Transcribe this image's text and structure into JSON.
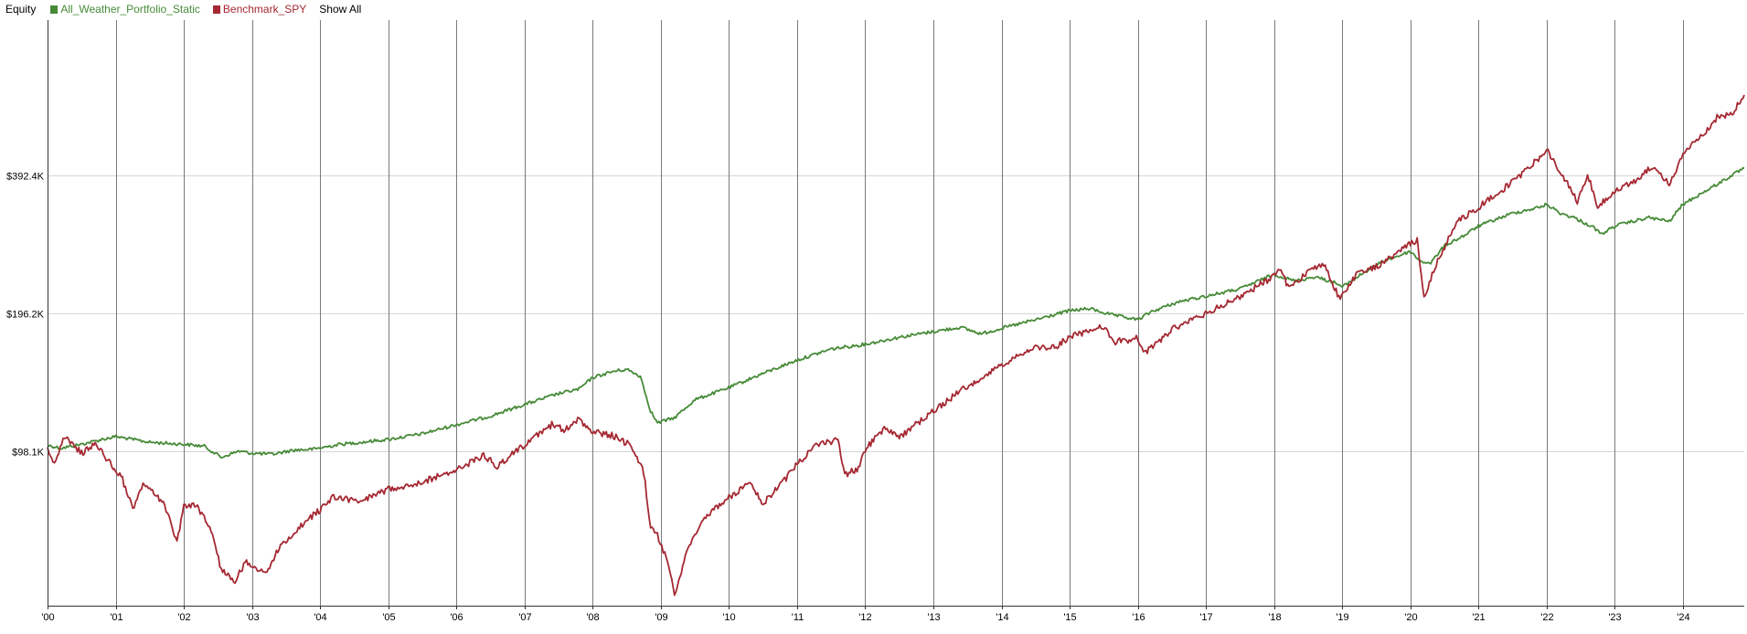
{
  "legend": {
    "title": "Equity",
    "show_all_label": "Show All"
  },
  "chart_data": {
    "type": "line",
    "title": "",
    "xlabel": "",
    "ylabel": "",
    "x_tick_labels": [
      "'00",
      "'01",
      "'02",
      "'03",
      "'04",
      "'05",
      "'06",
      "'07",
      "'08",
      "'09",
      "'10",
      "'11",
      "'12",
      "'13",
      "'14",
      "'15",
      "'16",
      "'17",
      "'18",
      "'19",
      "'20",
      "'21",
      "'22",
      "'23",
      "'24"
    ],
    "y_tick_labels": [
      "$98.1K",
      "$196.2K",
      "$392.4K"
    ],
    "y_ticks": [
      98100,
      196200,
      392400
    ],
    "y_scale": "log",
    "xlim": [
      2000,
      2024.9
    ],
    "ylim": [
      45000,
      860000
    ],
    "grid": {
      "vertical": true,
      "horizontal": true
    },
    "legend_position": "top-left",
    "series": [
      {
        "name": "All_Weather_Portfolio_Static",
        "color": "#468a37",
        "points": [
          [
            2000.0,
            101000
          ],
          [
            2000.2,
            99500
          ],
          [
            2000.5,
            101500
          ],
          [
            2000.8,
            104000
          ],
          [
            2001.0,
            105500
          ],
          [
            2001.5,
            102500
          ],
          [
            2002.0,
            101500
          ],
          [
            2002.3,
            100500
          ],
          [
            2002.55,
            95000
          ],
          [
            2002.8,
            98000
          ],
          [
            2003.0,
            97000
          ],
          [
            2003.3,
            96500
          ],
          [
            2003.6,
            98500
          ],
          [
            2003.9,
            99000
          ],
          [
            2004.3,
            101500
          ],
          [
            2004.6,
            102500
          ],
          [
            2005.0,
            104000
          ],
          [
            2005.5,
            107000
          ],
          [
            2006.0,
            112000
          ],
          [
            2006.5,
            117000
          ],
          [
            2007.0,
            124000
          ],
          [
            2007.5,
            131000
          ],
          [
            2007.8,
            134000
          ],
          [
            2008.0,
            142000
          ],
          [
            2008.3,
            146500
          ],
          [
            2008.5,
            148000
          ],
          [
            2008.7,
            143000
          ],
          [
            2008.85,
            120000
          ],
          [
            2008.95,
            113000
          ],
          [
            2009.2,
            116000
          ],
          [
            2009.5,
            127000
          ],
          [
            2010.0,
            135000
          ],
          [
            2010.5,
            145000
          ],
          [
            2011.0,
            155000
          ],
          [
            2011.5,
            164000
          ],
          [
            2012.0,
            168000
          ],
          [
            2012.5,
            174000
          ],
          [
            2013.0,
            179000
          ],
          [
            2013.4,
            183000
          ],
          [
            2013.7,
            177000
          ],
          [
            2014.0,
            182000
          ],
          [
            2014.5,
            190000
          ],
          [
            2015.0,
            199000
          ],
          [
            2015.3,
            201000
          ],
          [
            2015.6,
            195000
          ],
          [
            2016.0,
            190000
          ],
          [
            2016.2,
            198000
          ],
          [
            2016.6,
            208000
          ],
          [
            2017.0,
            214000
          ],
          [
            2017.5,
            222000
          ],
          [
            2018.0,
            239000
          ],
          [
            2018.3,
            231000
          ],
          [
            2018.6,
            236000
          ],
          [
            2018.9,
            229000
          ],
          [
            2019.0,
            224000
          ],
          [
            2019.3,
            240000
          ],
          [
            2019.6,
            255000
          ],
          [
            2020.0,
            268000
          ],
          [
            2020.15,
            255000
          ],
          [
            2020.3,
            253000
          ],
          [
            2020.5,
            276000
          ],
          [
            2020.8,
            291000
          ],
          [
            2021.0,
            305000
          ],
          [
            2021.5,
            325000
          ],
          [
            2021.9,
            335000
          ],
          [
            2022.0,
            340000
          ],
          [
            2022.2,
            325000
          ],
          [
            2022.4,
            318000
          ],
          [
            2022.7,
            302000
          ],
          [
            2022.8,
            292000
          ],
          [
            2023.0,
            305000
          ],
          [
            2023.5,
            318000
          ],
          [
            2023.8,
            312000
          ],
          [
            2024.0,
            340000
          ],
          [
            2024.5,
            376000
          ],
          [
            2024.9,
            408000
          ]
        ]
      },
      {
        "name": "Benchmark_SPY",
        "color": "#a52832",
        "points": [
          [
            2000.0,
            100000
          ],
          [
            2000.1,
            92000
          ],
          [
            2000.25,
            105000
          ],
          [
            2000.5,
            97000
          ],
          [
            2000.7,
            102000
          ],
          [
            2000.9,
            93000
          ],
          [
            2001.1,
            85000
          ],
          [
            2001.25,
            73000
          ],
          [
            2001.4,
            83000
          ],
          [
            2001.7,
            76000
          ],
          [
            2001.9,
            62000
          ],
          [
            2002.0,
            75000
          ],
          [
            2002.2,
            74000
          ],
          [
            2002.4,
            66000
          ],
          [
            2002.55,
            54000
          ],
          [
            2002.75,
            51000
          ],
          [
            2002.9,
            56000
          ],
          [
            2003.2,
            53000
          ],
          [
            2003.4,
            60000
          ],
          [
            2003.7,
            67000
          ],
          [
            2004.0,
            73000
          ],
          [
            2004.2,
            78000
          ],
          [
            2004.6,
            76000
          ],
          [
            2005.0,
            81000
          ],
          [
            2005.5,
            84000
          ],
          [
            2006.0,
            89000
          ],
          [
            2006.4,
            96000
          ],
          [
            2006.6,
            91000
          ],
          [
            2007.0,
            101000
          ],
          [
            2007.4,
            112000
          ],
          [
            2007.6,
            109000
          ],
          [
            2007.8,
            115000
          ],
          [
            2008.0,
            108000
          ],
          [
            2008.3,
            106000
          ],
          [
            2008.55,
            101000
          ],
          [
            2008.75,
            88000
          ],
          [
            2008.85,
            67000
          ],
          [
            2008.95,
            64000
          ],
          [
            2009.1,
            56000
          ],
          [
            2009.2,
            47500
          ],
          [
            2009.4,
            60000
          ],
          [
            2009.6,
            69000
          ],
          [
            2009.9,
            76000
          ],
          [
            2010.1,
            79000
          ],
          [
            2010.3,
            85000
          ],
          [
            2010.5,
            75000
          ],
          [
            2010.8,
            84000
          ],
          [
            2011.0,
            92000
          ],
          [
            2011.3,
            101000
          ],
          [
            2011.6,
            104000
          ],
          [
            2011.7,
            87000
          ],
          [
            2011.9,
            90000
          ],
          [
            2012.0,
            99000
          ],
          [
            2012.3,
            111000
          ],
          [
            2012.5,
            105000
          ],
          [
            2013.0,
            120000
          ],
          [
            2013.5,
            136000
          ],
          [
            2014.0,
            151000
          ],
          [
            2014.5,
            165000
          ],
          [
            2014.8,
            166000
          ],
          [
            2015.0,
            174000
          ],
          [
            2015.5,
            184000
          ],
          [
            2015.65,
            170000
          ],
          [
            2016.0,
            173000
          ],
          [
            2016.1,
            160000
          ],
          [
            2016.5,
            181000
          ],
          [
            2017.0,
            196000
          ],
          [
            2017.5,
            213000
          ],
          [
            2017.9,
            232000
          ],
          [
            2018.1,
            245000
          ],
          [
            2018.2,
            225000
          ],
          [
            2018.6,
            246000
          ],
          [
            2018.75,
            251000
          ],
          [
            2018.95,
            212000
          ],
          [
            2019.2,
            238000
          ],
          [
            2019.6,
            253000
          ],
          [
            2019.9,
            272000
          ],
          [
            2020.1,
            285000
          ],
          [
            2020.2,
            211000
          ],
          [
            2020.4,
            257000
          ],
          [
            2020.7,
            312000
          ],
          [
            2021.0,
            335000
          ],
          [
            2021.5,
            380000
          ],
          [
            2021.9,
            431000
          ],
          [
            2022.0,
            448000
          ],
          [
            2022.2,
            400000
          ],
          [
            2022.45,
            346000
          ],
          [
            2022.6,
            395000
          ],
          [
            2022.75,
            335000
          ],
          [
            2022.95,
            358000
          ],
          [
            2023.3,
            382000
          ],
          [
            2023.55,
            411000
          ],
          [
            2023.8,
            375000
          ],
          [
            2024.0,
            438000
          ],
          [
            2024.3,
            483000
          ],
          [
            2024.5,
            526000
          ],
          [
            2024.7,
            533000
          ],
          [
            2024.9,
            590000
          ]
        ]
      }
    ]
  }
}
